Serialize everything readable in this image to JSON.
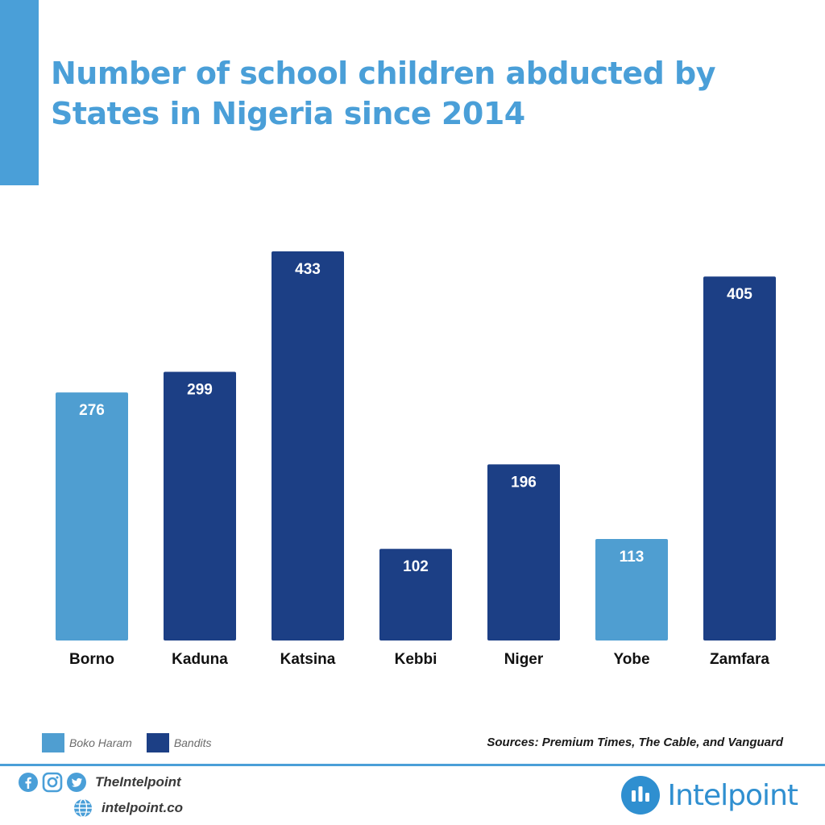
{
  "title": {
    "line1": "Number of school children abducted by",
    "line2": "States in Nigeria since 2014"
  },
  "colors": {
    "title": "#4a9fd8",
    "accent": "#4a9fd8",
    "boko_haram": "#4f9ed1",
    "bandits": "#1c3f85",
    "divider": "#4a9fd8",
    "brand": "#2f8fd0"
  },
  "chart_data": {
    "type": "bar",
    "categories": [
      "Borno",
      "Kaduna",
      "Katsina",
      "Kebbi",
      "Niger",
      "Yobe",
      "Zamfara"
    ],
    "values": [
      276,
      299,
      433,
      102,
      196,
      113,
      405
    ],
    "groups": [
      "Boko Haram",
      "Bandits",
      "Bandits",
      "Bandits",
      "Bandits",
      "Boko Haram",
      "Bandits"
    ],
    "ylim": [
      0,
      433
    ],
    "grid": false,
    "data_labels": true,
    "legend_position": "bottom-left",
    "legend": [
      {
        "name": "Boko Haram",
        "color": "#4f9ed1"
      },
      {
        "name": "Bandits",
        "color": "#1c3f85"
      }
    ]
  },
  "footer": {
    "sources": "Sources: Premium Times, The Cable, and Vanguard",
    "handle": "TheIntelpoint",
    "website": "intelpoint.co",
    "brand": "Intelpoint",
    "icons": [
      "facebook-icon",
      "instagram-icon",
      "twitter-icon",
      "globe-icon"
    ]
  }
}
